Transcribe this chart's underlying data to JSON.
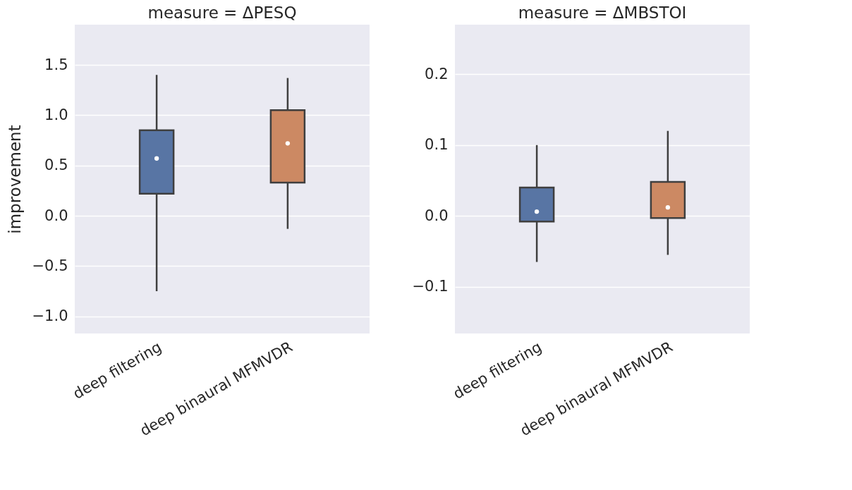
{
  "chart_data": [
    {
      "type": "box",
      "title": "measure = ΔPESQ",
      "ylabel": "improvement",
      "categories": [
        "deep filtering",
        "deep binaural MFMVDR"
      ],
      "boxes": [
        {
          "low": -0.75,
          "q1": 0.22,
          "median": 0.57,
          "q3": 0.85,
          "high": 1.4
        },
        {
          "low": -0.13,
          "q1": 0.33,
          "median": 0.72,
          "q3": 1.05,
          "high": 1.37
        }
      ],
      "colors": [
        "#5875a4",
        "#cc8963"
      ],
      "ylim": [
        -1.17,
        1.9
      ],
      "yticks": [
        {
          "value": -1,
          "label": "−1.0"
        },
        {
          "value": -0.5,
          "label": "−0.5"
        },
        {
          "value": 0,
          "label": "0.0"
        },
        {
          "value": 0.5,
          "label": "0.5"
        },
        {
          "value": 1,
          "label": "1.0"
        },
        {
          "value": 1.5,
          "label": "1.5"
        }
      ],
      "grid": "y"
    },
    {
      "type": "box",
      "title": "measure = ΔMBSTOI",
      "categories": [
        "deep filtering",
        "deep binaural MFMVDR"
      ],
      "boxes": [
        {
          "low": -0.065,
          "q1": -0.008,
          "median": 0.006,
          "q3": 0.04,
          "high": 0.1
        },
        {
          "low": -0.055,
          "q1": -0.003,
          "median": 0.012,
          "q3": 0.048,
          "high": 0.12
        }
      ],
      "colors": [
        "#5875a4",
        "#cc8963"
      ],
      "ylim": [
        -0.166,
        0.27
      ],
      "yticks": [
        {
          "value": -0.1,
          "label": "−0.1"
        },
        {
          "value": 0,
          "label": "0.0"
        },
        {
          "value": 0.1,
          "label": "0.1"
        },
        {
          "value": 0.2,
          "label": "0.2"
        }
      ],
      "grid": "y"
    }
  ]
}
